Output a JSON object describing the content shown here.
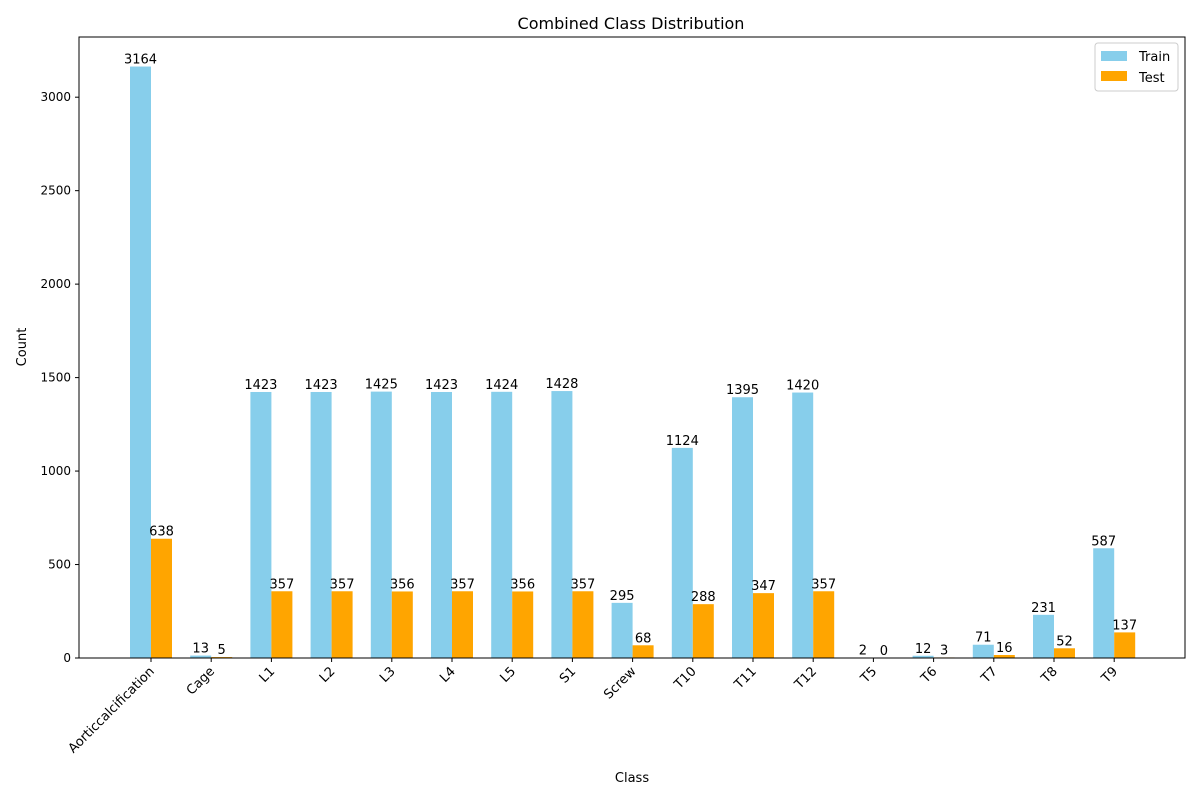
{
  "chart_data": {
    "type": "bar",
    "title": "Combined Class Distribution",
    "xlabel": "Class",
    "ylabel": "Count",
    "categories": [
      "Aorticcalcification",
      "Cage",
      "L1",
      "L2",
      "L3",
      "L4",
      "L5",
      "S1",
      "Screw",
      "T10",
      "T11",
      "T12",
      "T5",
      "T6",
      "T7",
      "T8",
      "T9"
    ],
    "series": [
      {
        "name": "Train",
        "color": "#87CEEB",
        "values": [
          3164,
          13,
          1423,
          1423,
          1425,
          1423,
          1424,
          1428,
          295,
          1124,
          1395,
          1420,
          2,
          12,
          71,
          231,
          587
        ]
      },
      {
        "name": "Test",
        "color": "#FFA500",
        "values": [
          638,
          5,
          357,
          357,
          356,
          357,
          356,
          357,
          68,
          288,
          347,
          357,
          0,
          3,
          16,
          52,
          137
        ]
      }
    ],
    "ylim": [
      0,
      3322
    ],
    "yticks": [
      0,
      500,
      1000,
      1500,
      2000,
      2500,
      3000
    ],
    "grid": false,
    "legend_position": "top-right"
  }
}
